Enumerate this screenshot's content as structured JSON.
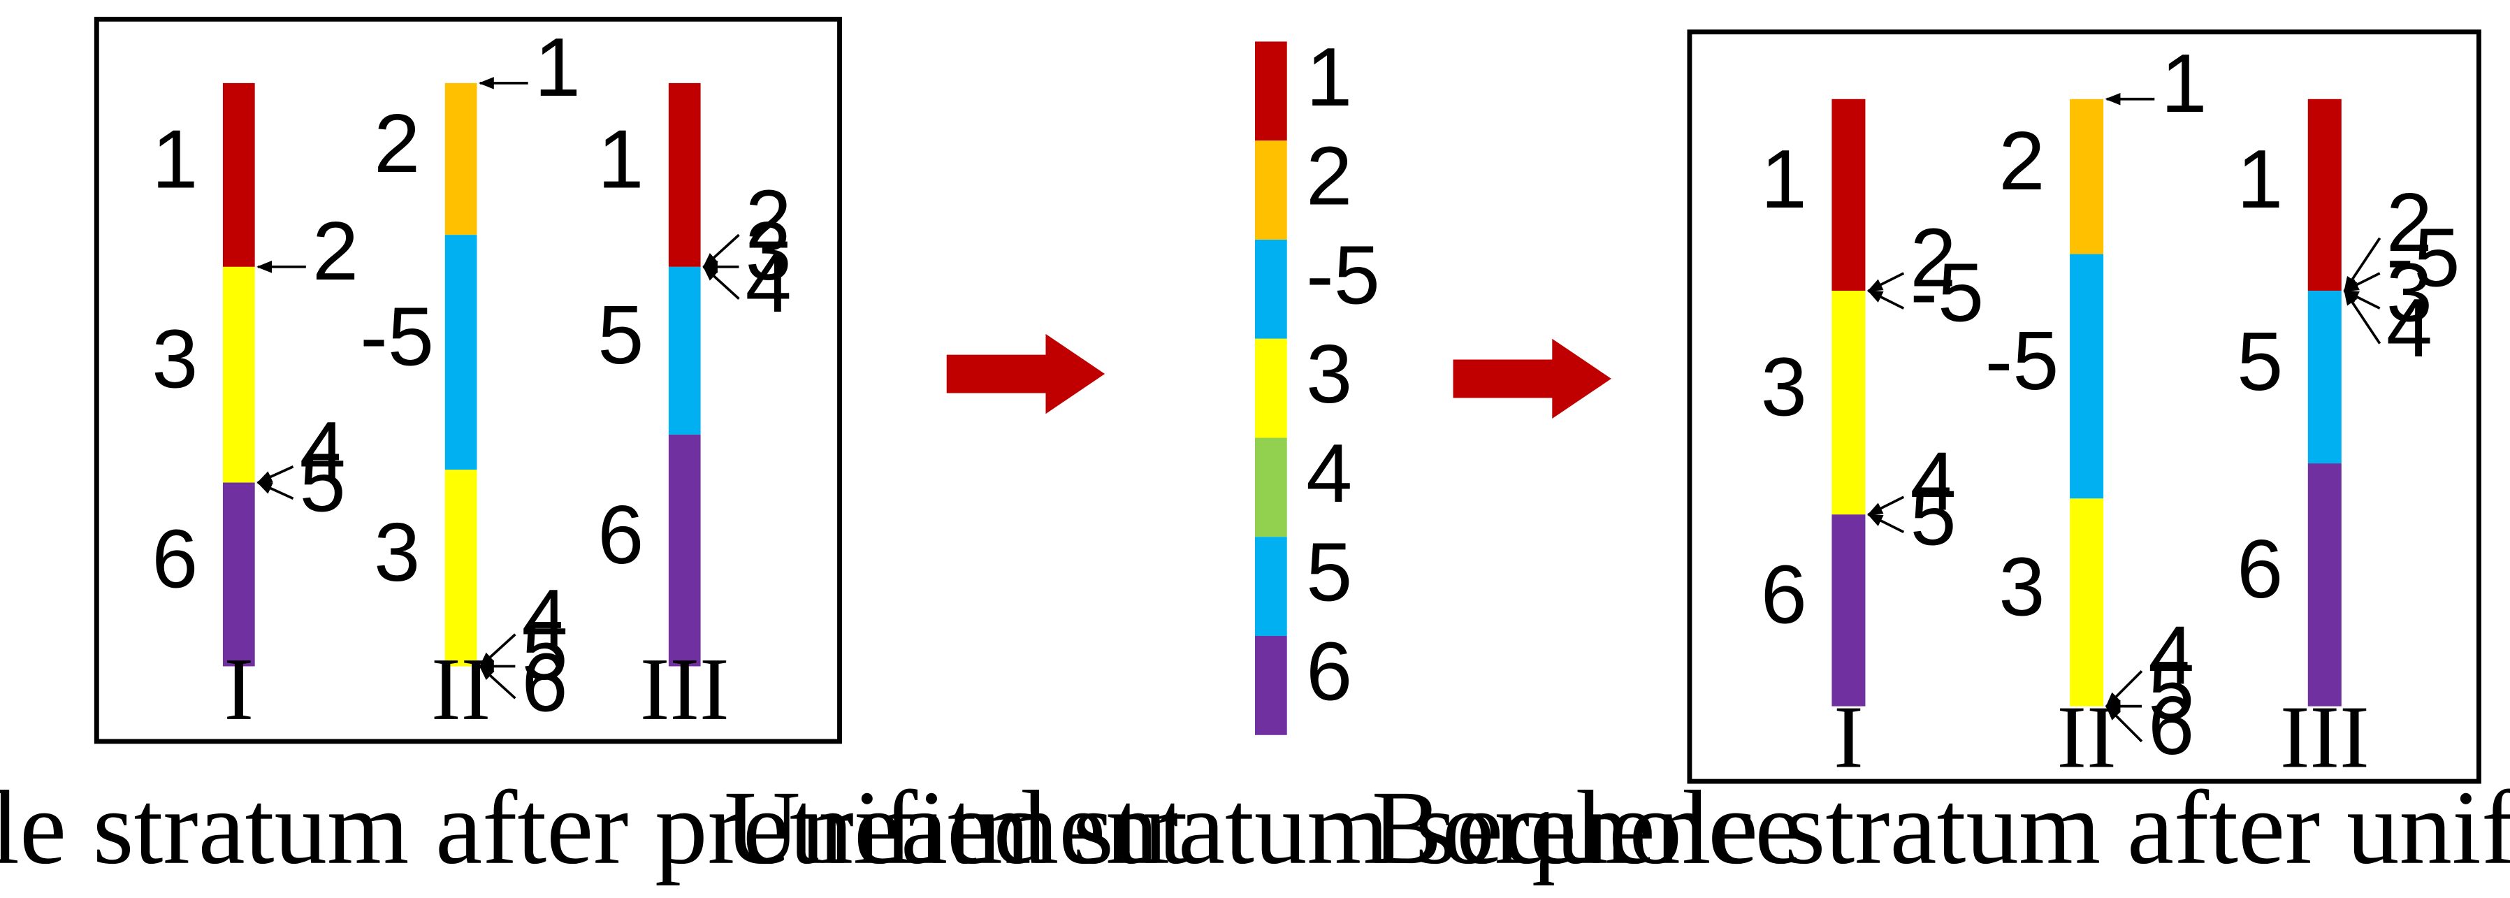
{
  "colors": {
    "1": "#c00000",
    "2": "#ffc000",
    "-5": "#00b0f0",
    "3": "#ffff00",
    "4": "#92d050",
    "5": "#00b0f0",
    "6": "#7030a0",
    "arrow": "#c00000"
  },
  "panel_left": {
    "caption": "Borehole stratum after pretreatment",
    "boreholes": [
      {
        "roman": "I",
        "layers": [
          {
            "id": "1",
            "label": "1",
            "thickness": 115
          },
          {
            "id": "3",
            "label": "3",
            "thickness": 135
          },
          {
            "id": "6",
            "label": "6",
            "thickness": 115
          }
        ],
        "callouts": [
          {
            "boundary": 1,
            "labels": [
              "2"
            ]
          },
          {
            "boundary": 2,
            "labels": [
              "4",
              "5"
            ]
          }
        ]
      },
      {
        "roman": "II",
        "layers": [
          {
            "id": "2",
            "label": "2",
            "thickness": 95
          },
          {
            "id": "-5",
            "label": "-5",
            "thickness": 147
          },
          {
            "id": "3",
            "label": "3",
            "thickness": 123
          }
        ],
        "callouts": [
          {
            "boundary": 0,
            "labels": [
              "1"
            ]
          },
          {
            "boundary": 3,
            "labels": [
              "4",
              "5",
              "6"
            ]
          }
        ]
      },
      {
        "roman": "III",
        "layers": [
          {
            "id": "1",
            "label": "1",
            "thickness": 115
          },
          {
            "id": "5",
            "label": "5",
            "thickness": 105
          },
          {
            "id": "6",
            "label": "6",
            "thickness": 145
          }
        ],
        "callouts": [
          {
            "boundary": 1,
            "labels": [
              "2",
              "3",
              "4"
            ]
          }
        ]
      }
    ]
  },
  "sequence": {
    "caption": "Unified stratum sequence",
    "layers": [
      "1",
      "2",
      "-5",
      "3",
      "4",
      "5",
      "6"
    ]
  },
  "panel_right": {
    "caption": "Borehole stratum after unification",
    "boreholes": [
      {
        "roman": "I",
        "layers": [
          {
            "id": "1",
            "label": "1",
            "thickness": 120
          },
          {
            "id": "3",
            "label": "3",
            "thickness": 140
          },
          {
            "id": "6",
            "label": "6",
            "thickness": 120
          }
        ],
        "callouts": [
          {
            "boundary": 1,
            "labels": [
              "2",
              "-5"
            ]
          },
          {
            "boundary": 2,
            "labels": [
              "4",
              "5"
            ]
          }
        ]
      },
      {
        "roman": "II",
        "layers": [
          {
            "id": "2",
            "label": "2",
            "thickness": 97
          },
          {
            "id": "-5",
            "label": "-5",
            "thickness": 153
          },
          {
            "id": "3",
            "label": "3",
            "thickness": 130
          }
        ],
        "callouts": [
          {
            "boundary": 0,
            "labels": [
              "1"
            ]
          },
          {
            "boundary": 3,
            "labels": [
              "4",
              "5",
              "6"
            ]
          }
        ]
      },
      {
        "roman": "III",
        "layers": [
          {
            "id": "1",
            "label": "1",
            "thickness": 120
          },
          {
            "id": "5",
            "label": "5",
            "thickness": 108
          },
          {
            "id": "6",
            "label": "6",
            "thickness": 152
          }
        ],
        "callouts": [
          {
            "boundary": 1,
            "labels": [
              "2",
              "-5",
              "3",
              "4"
            ]
          }
        ]
      }
    ]
  }
}
